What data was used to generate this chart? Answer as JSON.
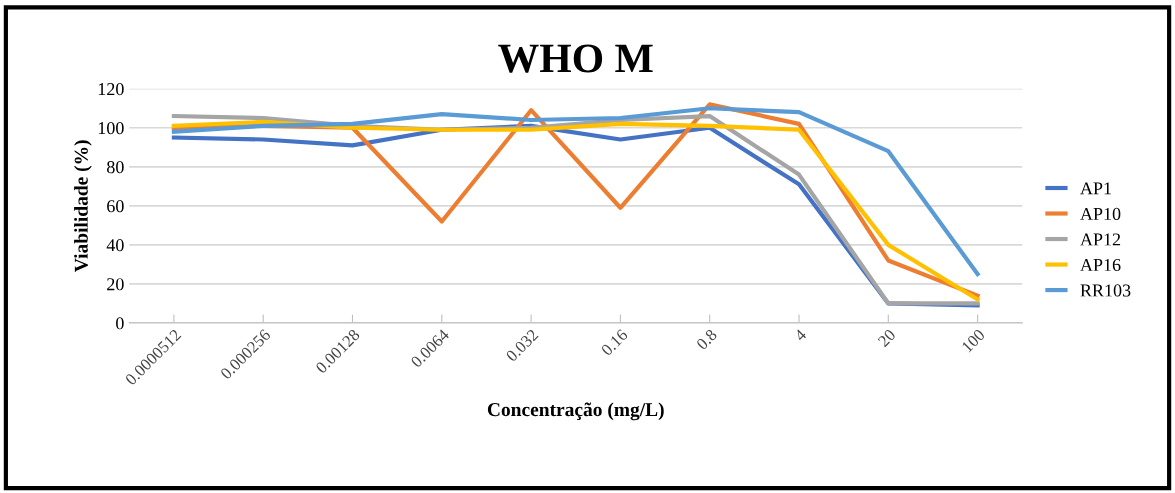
{
  "chart_data": {
    "type": "line",
    "title": "WHO M",
    "xlabel": "Concentração (mg/L)",
    "ylabel": "Viabilidade (%)",
    "categories": [
      "0.0000512",
      "0.000256",
      "0.00128",
      "0.0064",
      "0.032",
      "0.16",
      "0.8",
      "4",
      "20",
      "100"
    ],
    "series": [
      {
        "name": "AP1",
        "color": "#4472c4",
        "values": [
          95,
          94,
          91,
          99,
          101,
          94,
          100,
          71,
          10,
          9
        ]
      },
      {
        "name": "AP10",
        "color": "#ed7d31",
        "values": [
          100,
          101,
          100,
          52,
          109,
          59,
          112,
          102,
          32,
          14
        ]
      },
      {
        "name": "AP12",
        "color": "#a5a5a5",
        "values": [
          106,
          105,
          101,
          99,
          100,
          104,
          106,
          76,
          10,
          10
        ]
      },
      {
        "name": "AP16",
        "color": "#ffc000",
        "values": [
          101,
          103,
          100,
          99,
          99,
          102,
          101,
          99,
          40,
          12
        ]
      },
      {
        "name": "RR103",
        "color": "#5b9bd5",
        "values": [
          98,
          101,
          102,
          107,
          104,
          105,
          110,
          108,
          88,
          25
        ]
      }
    ],
    "ylim": [
      0,
      120
    ],
    "yticks": [
      0,
      20,
      40,
      60,
      80,
      100,
      120
    ],
    "grid": "y",
    "legend": "right",
    "marker": "none",
    "line_style": "solid"
  }
}
